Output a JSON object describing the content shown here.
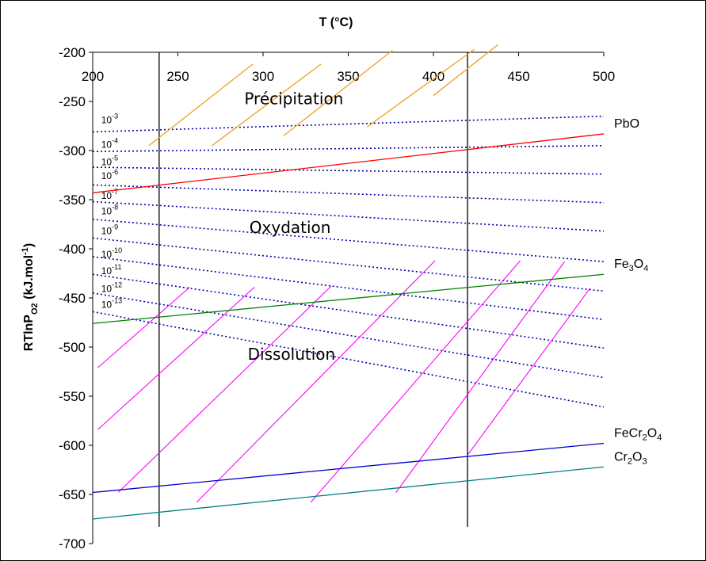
{
  "chart_data": {
    "type": "line",
    "xlabel": "T (°C)",
    "ylabel_html": "RTlnP<tspan baseline-shift='sub' font-size='11'>O2</tspan> (kJ.mol<tspan baseline-shift='super' font-size='11'>-1</tspan>)",
    "ylabel": "RTlnPO2 (kJ.mol-1)",
    "xlim": [
      200,
      500
    ],
    "ylim": [
      -700,
      -200
    ],
    "x_ticks": [
      200,
      250,
      300,
      350,
      400,
      450,
      500
    ],
    "y_ticks": [
      -200,
      -250,
      -300,
      -350,
      -400,
      -450,
      -500,
      -550,
      -600,
      -650,
      -700
    ],
    "x_axis_position": "top",
    "grid": false,
    "series": [
      {
        "name": "PbO",
        "label": "PbO",
        "color": "#ff0000",
        "x": [
          200,
          500
        ],
        "y": [
          -343,
          -283
        ]
      },
      {
        "name": "Fe3O4",
        "label_base": "Fe",
        "label_sub1": "3",
        "label_mid": "O",
        "label_sub2": "4",
        "color": "#008000",
        "x": [
          200,
          500
        ],
        "y": [
          -476,
          -426
        ]
      },
      {
        "name": "FeCr2O4",
        "label_base": "FeCr",
        "label_sub1": "2",
        "label_mid": "O",
        "label_sub2": "4",
        "color": "#0000cc",
        "x": [
          200,
          500
        ],
        "y": [
          -648,
          -598
        ]
      },
      {
        "name": "Cr2O3",
        "label_base": "Cr",
        "label_sub1": "2",
        "label_mid": "O",
        "label_sub2": "3",
        "color": "#008080",
        "x": [
          200,
          500
        ],
        "y": [
          -675,
          -622
        ]
      }
    ],
    "vertical_lines": [
      {
        "x": 239,
        "y_top": -200,
        "y_bottom": -683
      },
      {
        "x": 420,
        "y_top": -200,
        "y_bottom": -683
      }
    ],
    "pressure_lines": [
      {
        "label_base": "10",
        "label_exp": "-3",
        "label_x": 205,
        "label_y": -272,
        "x": [
          200,
          500
        ],
        "y": [
          -281,
          -265
        ]
      },
      {
        "label_base": "10",
        "label_exp": "-4",
        "label_x": 205,
        "label_y": -297,
        "x": [
          200,
          500
        ],
        "y": [
          -301,
          -295
        ]
      },
      {
        "label_base": "10",
        "label_exp": "-5",
        "label_x": 205,
        "label_y": -315,
        "x": [
          200,
          500
        ],
        "y": [
          -317,
          -324
        ]
      },
      {
        "label_base": "10",
        "label_exp": "-6",
        "label_x": 205,
        "label_y": -329,
        "x": [
          200,
          500
        ],
        "y": [
          -335,
          -353
        ]
      },
      {
        "label_base": "10",
        "label_exp": "-7",
        "label_x": 205,
        "label_y": -349,
        "x": [
          200,
          500
        ],
        "y": [
          -352,
          -382
        ]
      },
      {
        "label_base": "10",
        "label_exp": "-8",
        "label_x": 205,
        "label_y": -365,
        "x": [
          200,
          500
        ],
        "y": [
          -370,
          -413
        ]
      },
      {
        "label_base": "10",
        "label_exp": "-9",
        "label_x": 205,
        "label_y": -385,
        "x": [
          200,
          500
        ],
        "y": [
          -389,
          -443
        ]
      },
      {
        "label_base": "10",
        "label_exp": "-10",
        "label_x": 205,
        "label_y": -409,
        "x": [
          200,
          500
        ],
        "y": [
          -408,
          -472
        ]
      },
      {
        "label_base": "10",
        "label_exp": "-11",
        "label_x": 205,
        "label_y": -426,
        "x": [
          200,
          500
        ],
        "y": [
          -426,
          -501
        ]
      },
      {
        "label_base": "10",
        "label_exp": "-12",
        "label_x": 205,
        "label_y": -444,
        "x": [
          200,
          500
        ],
        "y": [
          -445,
          -531
        ]
      },
      {
        "label_base": "10",
        "label_exp": "-13",
        "label_x": 205,
        "label_y": -460,
        "x": [
          200,
          500
        ],
        "y": [
          -464,
          -561
        ]
      }
    ],
    "precipitation_lines": [
      {
        "x": [
          233,
          294
        ],
        "y": [
          -295,
          -212
        ]
      },
      {
        "x": [
          270,
          334
        ],
        "y": [
          -295,
          -212
        ]
      },
      {
        "x": [
          312,
          376
        ],
        "y": [
          -285,
          -198
        ]
      },
      {
        "x": [
          361,
          424
        ],
        "y": [
          -276,
          -197
        ]
      },
      {
        "x": [
          400,
          438
        ],
        "y": [
          -244,
          -192
        ]
      }
    ],
    "dissolution_lines": [
      {
        "x": [
          203,
          257
        ],
        "y": [
          -521,
          -439
        ]
      },
      {
        "x": [
          203,
          295
        ],
        "y": [
          -584,
          -439
        ]
      },
      {
        "x": [
          215,
          340
        ],
        "y": [
          -648,
          -438
        ]
      },
      {
        "x": [
          261,
          401
        ],
        "y": [
          -658,
          -412
        ]
      },
      {
        "x": [
          328,
          451
        ],
        "y": [
          -658,
          -412
        ]
      },
      {
        "x": [
          378,
          477
        ],
        "y": [
          -648,
          -413
        ]
      },
      {
        "x": [
          420,
          492
        ],
        "y": [
          -610,
          -440
        ]
      }
    ],
    "annotations": [
      {
        "text": "Précipitation",
        "x": 289,
        "y": -253
      },
      {
        "text": "Oxydation",
        "x": 292,
        "y": -384
      },
      {
        "text": "Dissolution",
        "x": 291,
        "y": -513
      }
    ]
  }
}
